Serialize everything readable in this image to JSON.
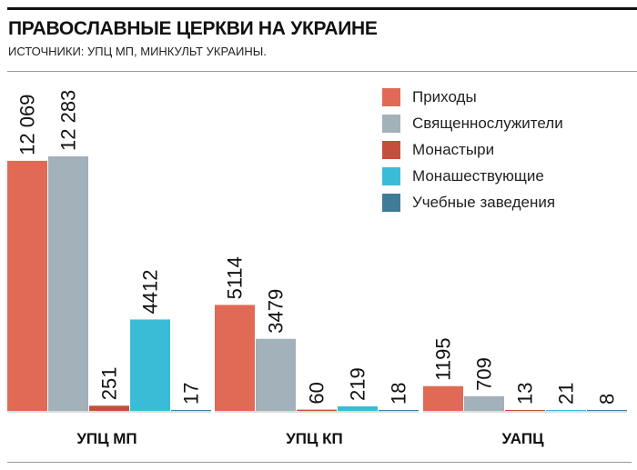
{
  "chart_data": {
    "type": "bar",
    "title": "ПРАВОСЛАВНЫЕ ЦЕРКВИ НА УКРАИНЕ",
    "subtitle": "ИСТОЧНИКИ: УПЦ МП, МИНКУЛЬТ УКРАИНЫ.",
    "categories": [
      "УПЦ МП",
      "УПЦ КП",
      "УАПЦ"
    ],
    "series": [
      {
        "name": "Приходы",
        "color": "#e06a55",
        "values": [
          12069,
          5114,
          1195
        ],
        "labels": [
          "12 069",
          "5114",
          "1195"
        ]
      },
      {
        "name": "Священнослужители",
        "color": "#a2b1ba",
        "values": [
          12283,
          3479,
          709
        ],
        "labels": [
          "12 283",
          "3479",
          "709"
        ]
      },
      {
        "name": "Монастыри",
        "color": "#c44f3d",
        "values": [
          251,
          60,
          13
        ],
        "labels": [
          "251",
          "60",
          "13"
        ]
      },
      {
        "name": "Монашествующие",
        "color": "#3bbcd6",
        "values": [
          4412,
          219,
          21
        ],
        "labels": [
          "4412",
          "219",
          "21"
        ]
      },
      {
        "name": "Учебные заведения",
        "color": "#3f7c98",
        "values": [
          17,
          18,
          8
        ],
        "labels": [
          "17",
          "18",
          "8"
        ]
      }
    ],
    "xlabel": "",
    "ylabel": "",
    "ylim": [
      0,
      12283
    ],
    "grid": false,
    "legend": "top-right"
  }
}
